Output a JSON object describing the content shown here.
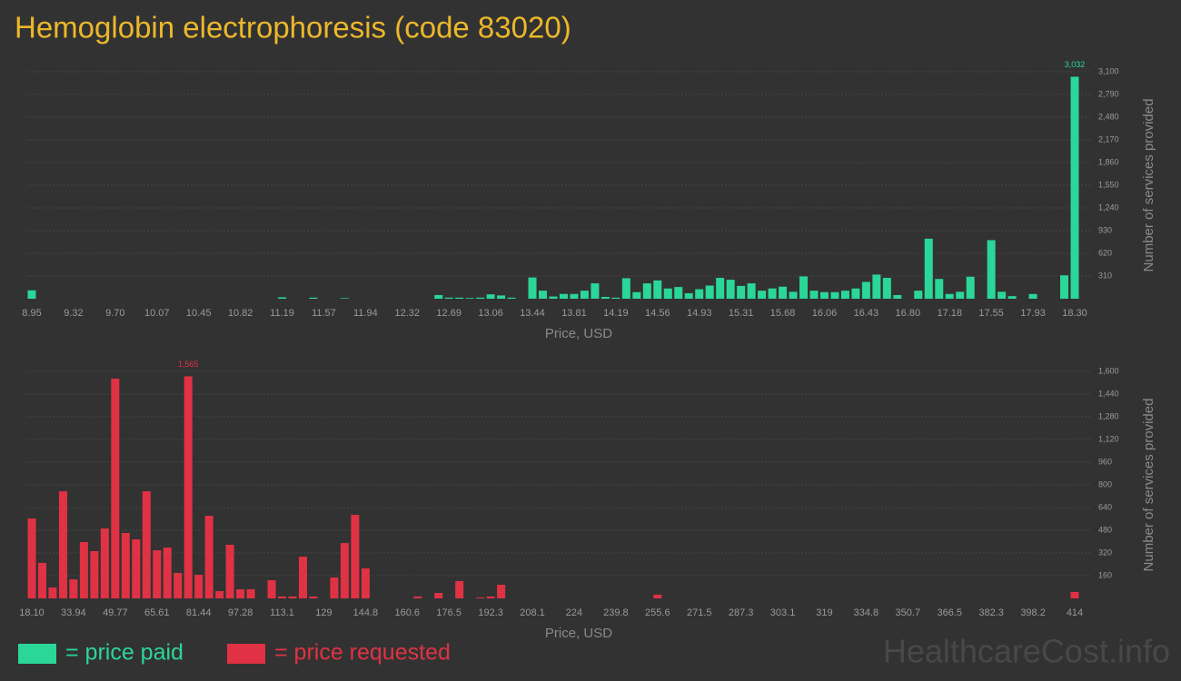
{
  "title": "Hemoglobin electrophoresis (code 83020)",
  "watermark": "HealthcareCost.info",
  "chart_data": [
    {
      "type": "bar",
      "categories": [
        "8.95",
        null,
        null,
        null,
        "9.32",
        null,
        null,
        null,
        "9.70",
        null,
        null,
        null,
        "10.07",
        null,
        null,
        null,
        "10.45",
        null,
        null,
        null,
        "10.82",
        null,
        null,
        null,
        "11.19",
        null,
        null,
        null,
        "11.57",
        null,
        null,
        null,
        "11.94",
        null,
        null,
        null,
        "12.32",
        null,
        null,
        null,
        "12.69",
        null,
        null,
        null,
        "13.06",
        null,
        null,
        null,
        "13.44",
        null,
        null,
        null,
        "13.81",
        null,
        null,
        null,
        "14.19",
        null,
        null,
        null,
        "14.56",
        null,
        null,
        null,
        "14.93",
        null,
        null,
        null,
        "15.31",
        null,
        null,
        null,
        "15.68",
        null,
        null,
        null,
        "16.06",
        null,
        null,
        null,
        "16.43",
        null,
        null,
        null,
        "16.80",
        null,
        null,
        null,
        "17.18",
        null,
        null,
        null,
        "17.55",
        null,
        null,
        null,
        "17.93",
        null,
        null,
        null,
        "18.30"
      ],
      "series": [
        {
          "name": "= price paid",
          "color": "#2bd699",
          "values": [
            115,
            0,
            0,
            0,
            0,
            0,
            0,
            0,
            0,
            0,
            0,
            0,
            0,
            0,
            0,
            0,
            0,
            0,
            0,
            0,
            0,
            0,
            0,
            0,
            20,
            0,
            0,
            15,
            0,
            0,
            8,
            0,
            0,
            0,
            0,
            0,
            0,
            0,
            0,
            50,
            15,
            15,
            10,
            15,
            60,
            45,
            15,
            0,
            290,
            110,
            30,
            65,
            65,
            110,
            210,
            25,
            15,
            280,
            90,
            210,
            250,
            140,
            160,
            75,
            130,
            180,
            285,
            260,
            175,
            210,
            110,
            140,
            165,
            95,
            305,
            110,
            90,
            90,
            110,
            140,
            230,
            330,
            285,
            50,
            0,
            110,
            820,
            270,
            65,
            95,
            300,
            0,
            800,
            95,
            35,
            0,
            65,
            0,
            0,
            320,
            3032
          ],
          "value_labels": [
            null,
            null,
            null,
            null,
            null,
            null,
            null,
            null,
            null,
            null,
            null,
            null,
            null,
            null,
            null,
            null,
            null,
            null,
            null,
            null,
            null,
            null,
            null,
            null,
            null,
            null,
            null,
            null,
            null,
            null,
            null,
            null,
            null,
            null,
            null,
            null,
            null,
            null,
            null,
            null,
            null,
            null,
            null,
            null,
            null,
            null,
            null,
            null,
            null,
            null,
            null,
            null,
            null,
            null,
            null,
            null,
            null,
            null,
            null,
            null,
            null,
            null,
            null,
            null,
            null,
            null,
            null,
            null,
            null,
            null,
            null,
            null,
            null,
            null,
            null,
            null,
            null,
            null,
            null,
            null,
            null,
            null,
            null,
            null,
            null,
            null,
            null,
            null,
            null,
            null,
            null,
            null,
            null,
            null,
            null,
            null,
            null,
            null,
            null,
            null,
            "3,032"
          ]
        }
      ],
      "xlabel": "Price, USD",
      "ylabel": "Number of services provided",
      "ylim": [
        0,
        3100
      ],
      "yticks": [
        310,
        620,
        930,
        {
          "value": 1240,
          "label": "1,240"
        },
        {
          "value": 1550,
          "label": "1,550"
        },
        {
          "value": 1860,
          "label": "1,860"
        },
        {
          "value": 2170,
          "label": "2,170"
        },
        {
          "value": 2480,
          "label": "2,480"
        },
        {
          "value": 2790,
          "label": "2,790"
        },
        {
          "value": 3100,
          "label": "3,100"
        }
      ],
      "grid": true
    },
    {
      "type": "bar",
      "categories": [
        "18.10",
        null,
        null,
        null,
        "33.94",
        null,
        null,
        null,
        "49.77",
        null,
        null,
        null,
        "65.61",
        null,
        null,
        null,
        "81.44",
        null,
        null,
        null,
        "97.28",
        null,
        null,
        null,
        "113.1",
        null,
        null,
        null,
        "129",
        null,
        null,
        null,
        "144.8",
        null,
        null,
        null,
        "160.6",
        null,
        null,
        null,
        "176.5",
        null,
        null,
        null,
        "192.3",
        null,
        null,
        null,
        "208.1",
        null,
        null,
        null,
        "224",
        null,
        null,
        null,
        "239.8",
        null,
        null,
        null,
        "255.6",
        null,
        null,
        null,
        "271.5",
        null,
        null,
        null,
        "287.3",
        null,
        null,
        null,
        "303.1",
        null,
        null,
        null,
        "319",
        null,
        null,
        null,
        "334.8",
        null,
        null,
        null,
        "350.7",
        null,
        null,
        null,
        "366.5",
        null,
        null,
        null,
        "382.3",
        null,
        null,
        null,
        "398.2",
        null,
        null,
        null,
        "414"
      ],
      "series": [
        {
          "name": "= price requested",
          "color": "#e03244",
          "values": [
            563,
            250,
            77,
            755,
            134,
            397,
            333,
            493,
            1549,
            461,
            416,
            755,
            339,
            358,
            179,
            1565,
            166,
            582,
            51,
            378,
            64,
            64,
            0,
            128,
            13,
            13,
            294,
            13,
            0,
            147,
            390,
            589,
            211,
            0,
            0,
            0,
            0,
            13,
            0,
            38,
            0,
            122,
            0,
            6,
            13,
            96,
            0,
            0,
            0,
            0,
            0,
            0,
            0,
            0,
            0,
            0,
            0,
            0,
            0,
            0,
            26,
            0,
            0,
            0,
            0,
            0,
            0,
            0,
            0,
            0,
            0,
            0,
            0,
            0,
            0,
            0,
            0,
            0,
            0,
            0,
            0,
            0,
            0,
            0,
            0,
            0,
            0,
            0,
            0,
            0,
            0,
            0,
            0,
            0,
            0,
            0,
            0,
            0,
            0,
            0,
            45
          ],
          "value_labels": [
            null,
            null,
            null,
            null,
            null,
            null,
            null,
            null,
            null,
            null,
            null,
            null,
            null,
            null,
            null,
            "1,565",
            null,
            null,
            null,
            null,
            null,
            null,
            null,
            null,
            null,
            null,
            null,
            null,
            null,
            null,
            null,
            null,
            null,
            null,
            null,
            null,
            null,
            null,
            null,
            null,
            null,
            null,
            null,
            null,
            null,
            null,
            null,
            null,
            null,
            null,
            null,
            null,
            null,
            null,
            null,
            null,
            null,
            null,
            null,
            null,
            null,
            null,
            null,
            null,
            null,
            null,
            null,
            null,
            null,
            null,
            null,
            null,
            null,
            null,
            null,
            null,
            null,
            null,
            null,
            null,
            null,
            null,
            null,
            null,
            null,
            null,
            null,
            null,
            null,
            null,
            null,
            null,
            null,
            null,
            null,
            null,
            null,
            null,
            null,
            null,
            null
          ]
        }
      ],
      "xlabel": "Price, USD",
      "ylabel": "Number of services provided",
      "ylim": [
        0,
        1600
      ],
      "yticks": [
        160,
        320,
        480,
        640,
        800,
        960,
        {
          "value": 1120,
          "label": "1,120"
        },
        {
          "value": 1280,
          "label": "1,280"
        },
        {
          "value": 1440,
          "label": "1,440"
        },
        {
          "value": 1600,
          "label": "1,600"
        }
      ],
      "grid": true
    }
  ]
}
